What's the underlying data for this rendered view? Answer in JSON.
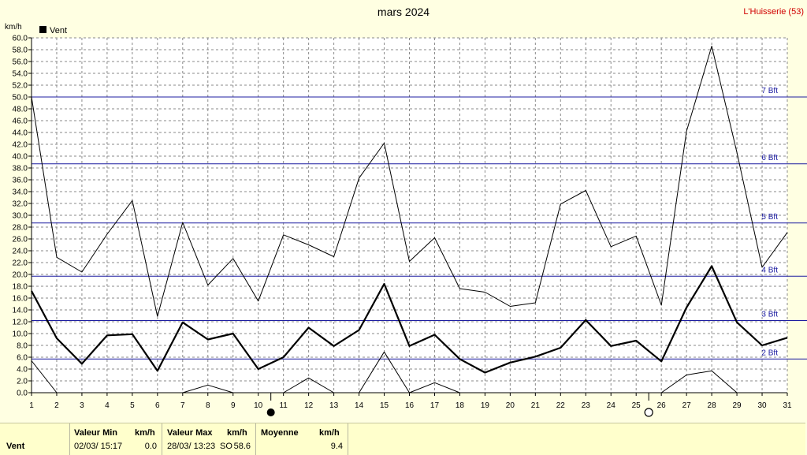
{
  "chart_data": {
    "type": "line",
    "title": "mars 2024",
    "station": "L'Huisserie (53)",
    "ylabel": "km/h",
    "ylim": [
      0,
      60
    ],
    "y_ticks": [
      "0.0",
      "2.0",
      "4.0",
      "6.0",
      "8.0",
      "10.0",
      "12.0",
      "14.0",
      "16.0",
      "18.0",
      "20.0",
      "22.0",
      "24.0",
      "26.0",
      "28.0",
      "30.0",
      "32.0",
      "34.0",
      "36.0",
      "38.0",
      "40.0",
      "42.0",
      "44.0",
      "46.0",
      "48.0",
      "50.0",
      "52.0",
      "54.0",
      "56.0",
      "58.0",
      "60.0"
    ],
    "x": [
      "1",
      "2",
      "3",
      "4",
      "5",
      "6",
      "7",
      "8",
      "9",
      "10",
      "11",
      "12",
      "13",
      "14",
      "15",
      "16",
      "17",
      "18",
      "19",
      "20",
      "21",
      "22",
      "23",
      "24",
      "25",
      "26",
      "27",
      "28",
      "29",
      "30",
      "31"
    ],
    "legend": "Vent",
    "grid": true,
    "series": [
      {
        "name": "Vent",
        "role": "max",
        "values": [
          50.0,
          22.9,
          20.4,
          26.8,
          32.5,
          12.9,
          28.8,
          18.2,
          22.7,
          15.5,
          26.7,
          25.0,
          23.0,
          36.3,
          42.2,
          22.2,
          26.2,
          17.6,
          17.0,
          14.6,
          15.2,
          31.9,
          34.2,
          24.7,
          26.5,
          14.8,
          44.2,
          58.6,
          40.6,
          21.2,
          27.1
        ],
        "color": "#000000"
      },
      {
        "name": "Vent",
        "role": "mean",
        "values": [
          17.2,
          9.2,
          4.9,
          9.7,
          9.9,
          3.7,
          11.9,
          9.0,
          10.0,
          4.0,
          6.0,
          11.0,
          7.9,
          10.6,
          18.4,
          7.9,
          9.8,
          5.7,
          3.4,
          5.1,
          6.1,
          7.6,
          12.3,
          7.9,
          8.8,
          5.3,
          14.4,
          21.4,
          11.9,
          8.0,
          9.3
        ],
        "color": "#000000"
      },
      {
        "name": "Vent",
        "role": "min",
        "values": [
          5.4,
          0.0,
          null,
          null,
          0.1,
          null,
          0.0,
          1.3,
          0.0,
          null,
          0.0,
          2.5,
          0.0,
          0.0,
          6.9,
          0.0,
          1.7,
          0.0,
          null,
          null,
          null,
          null,
          null,
          null,
          null,
          0.0,
          3.0,
          3.7,
          0.0,
          null,
          null
        ],
        "color": "#000000"
      }
    ],
    "beaufort": [
      {
        "label": "2 Bft",
        "value": 5.7
      },
      {
        "label": "3 Bft",
        "value": 12.2
      },
      {
        "label": "4 Bft",
        "value": 19.7
      },
      {
        "label": "5 Bft",
        "value": 28.7
      },
      {
        "label": "6 Bft",
        "value": 38.7
      },
      {
        "label": "7 Bft",
        "value": 50.0
      }
    ],
    "moon_phases": [
      {
        "day": 10.5,
        "phase": "new"
      },
      {
        "day": 25.5,
        "phase": "full"
      }
    ]
  },
  "stats": {
    "row_label": "Vent",
    "min_header": "Valeur Min",
    "min_unit": "km/h",
    "min_date": "02/03/  15:17",
    "min_value": "0.0",
    "max_header": "Valeur Max",
    "max_unit": "km/h",
    "max_date": "28/03/  13:23",
    "max_dir": "SO",
    "max_value": "58.6",
    "mean_header": "Moyenne",
    "mean_unit": "km/h",
    "mean_value": "9.4"
  }
}
